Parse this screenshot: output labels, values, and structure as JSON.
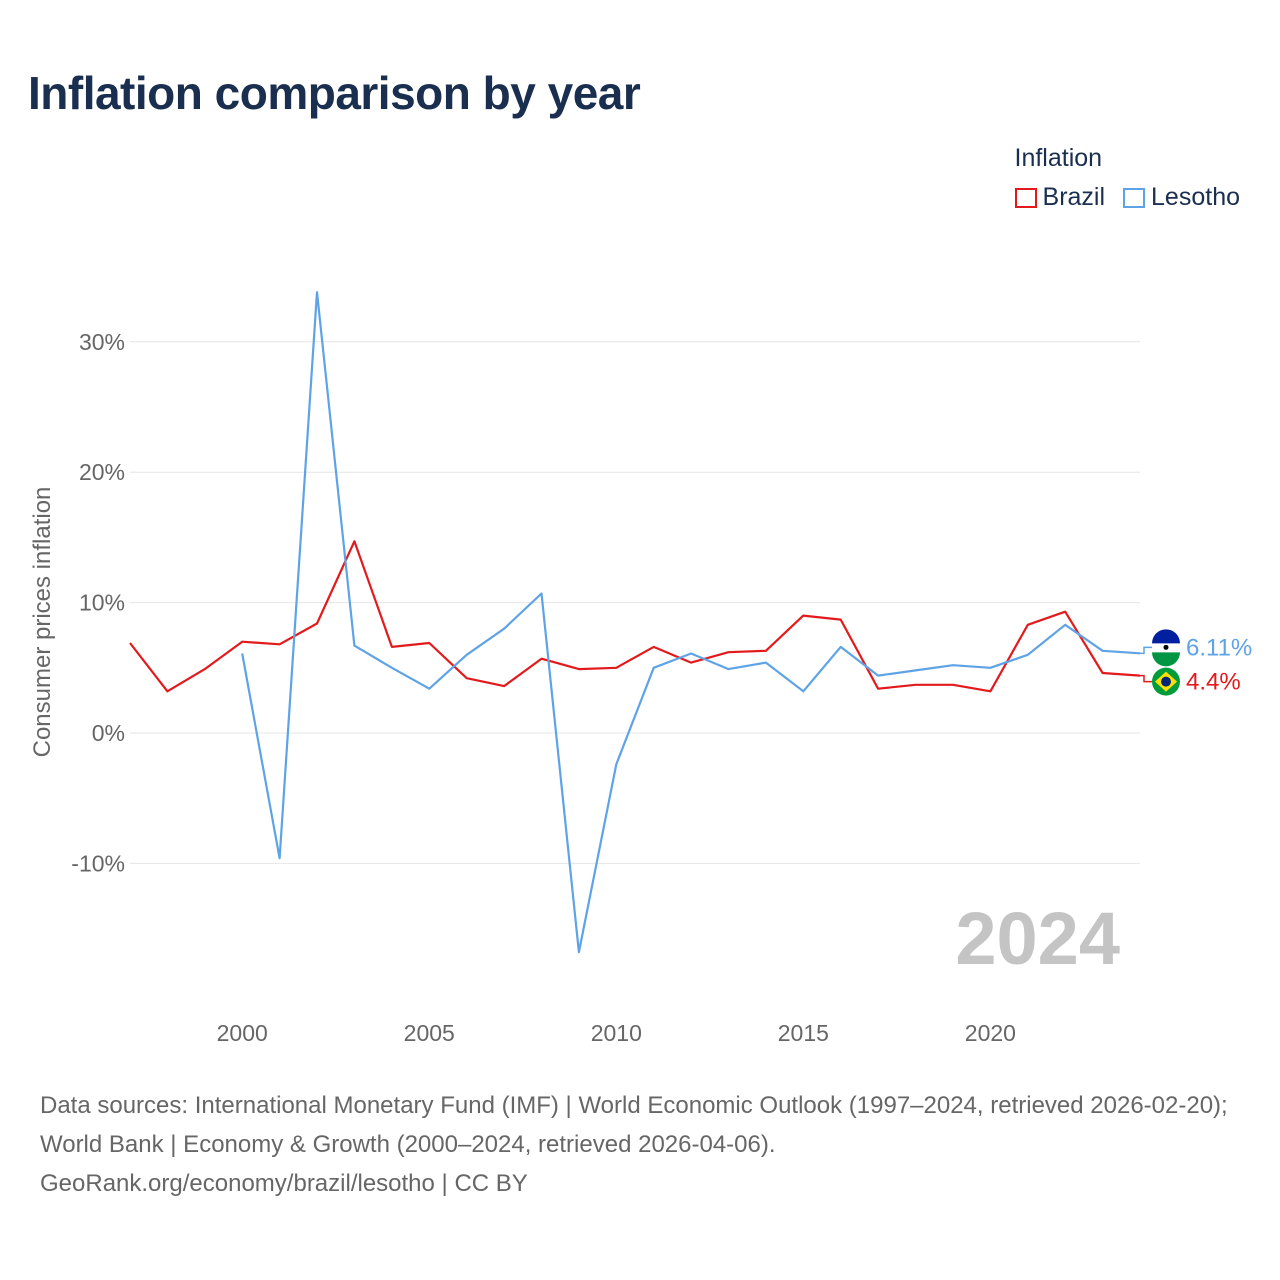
{
  "title": "Inflation comparison by year",
  "legend": {
    "title": "Inflation",
    "items": [
      {
        "name": "Brazil",
        "color": "#e31a1c"
      },
      {
        "name": "Lesotho",
        "color": "#5ea3e6"
      }
    ]
  },
  "footer": {
    "line1": "Data sources: International Monetary Fund (IMF) | World Economic Outlook (1997–2024, retrieved 2026-02-20); World Bank | Economy & Growth (2000–2024, retrieved 2026-04-06).",
    "line2": "GeoRank.org/economy/brazil/lesotho | CC BY"
  },
  "chart_data": {
    "type": "line",
    "title": "Inflation comparison by year",
    "xlabel": "",
    "ylabel": "Consumer prices inflation",
    "xlim": [
      1997,
      2024
    ],
    "ylim": [
      -20,
      35
    ],
    "x_ticks": [
      2000,
      2005,
      2010,
      2015,
      2020
    ],
    "y_ticks": [
      -10,
      0,
      10,
      20,
      30
    ],
    "y_tick_labels": [
      "-10%",
      "0%",
      "10%",
      "20%",
      "30%"
    ],
    "year_marker": "2024",
    "series": [
      {
        "name": "Brazil",
        "color": "#e31a1c",
        "x": [
          1997,
          1998,
          1999,
          2000,
          2001,
          2002,
          2003,
          2004,
          2005,
          2006,
          2007,
          2008,
          2009,
          2010,
          2011,
          2012,
          2013,
          2014,
          2015,
          2016,
          2017,
          2018,
          2019,
          2020,
          2021,
          2022,
          2023,
          2024
        ],
        "values": [
          6.9,
          3.2,
          4.9,
          7.0,
          6.8,
          8.4,
          14.7,
          6.6,
          6.9,
          4.2,
          3.6,
          5.7,
          4.9,
          5.0,
          6.6,
          5.4,
          6.2,
          6.3,
          9.0,
          8.7,
          3.4,
          3.7,
          3.7,
          3.2,
          8.3,
          9.3,
          4.6,
          4.4
        ],
        "end_label": "4.4%"
      },
      {
        "name": "Lesotho",
        "color": "#5ea3e6",
        "x": [
          2000,
          2001,
          2002,
          2003,
          2004,
          2005,
          2006,
          2007,
          2008,
          2009,
          2010,
          2011,
          2012,
          2013,
          2014,
          2015,
          2016,
          2017,
          2018,
          2019,
          2020,
          2021,
          2022,
          2023,
          2024
        ],
        "values": [
          6.1,
          -9.6,
          33.8,
          6.7,
          5.0,
          3.4,
          6.0,
          8.0,
          10.7,
          -16.8,
          -2.4,
          5.0,
          6.1,
          4.9,
          5.4,
          3.2,
          6.6,
          4.4,
          4.8,
          5.2,
          5.0,
          6.0,
          8.3,
          6.3,
          6.11
        ],
        "end_label": "6.11%"
      }
    ]
  }
}
